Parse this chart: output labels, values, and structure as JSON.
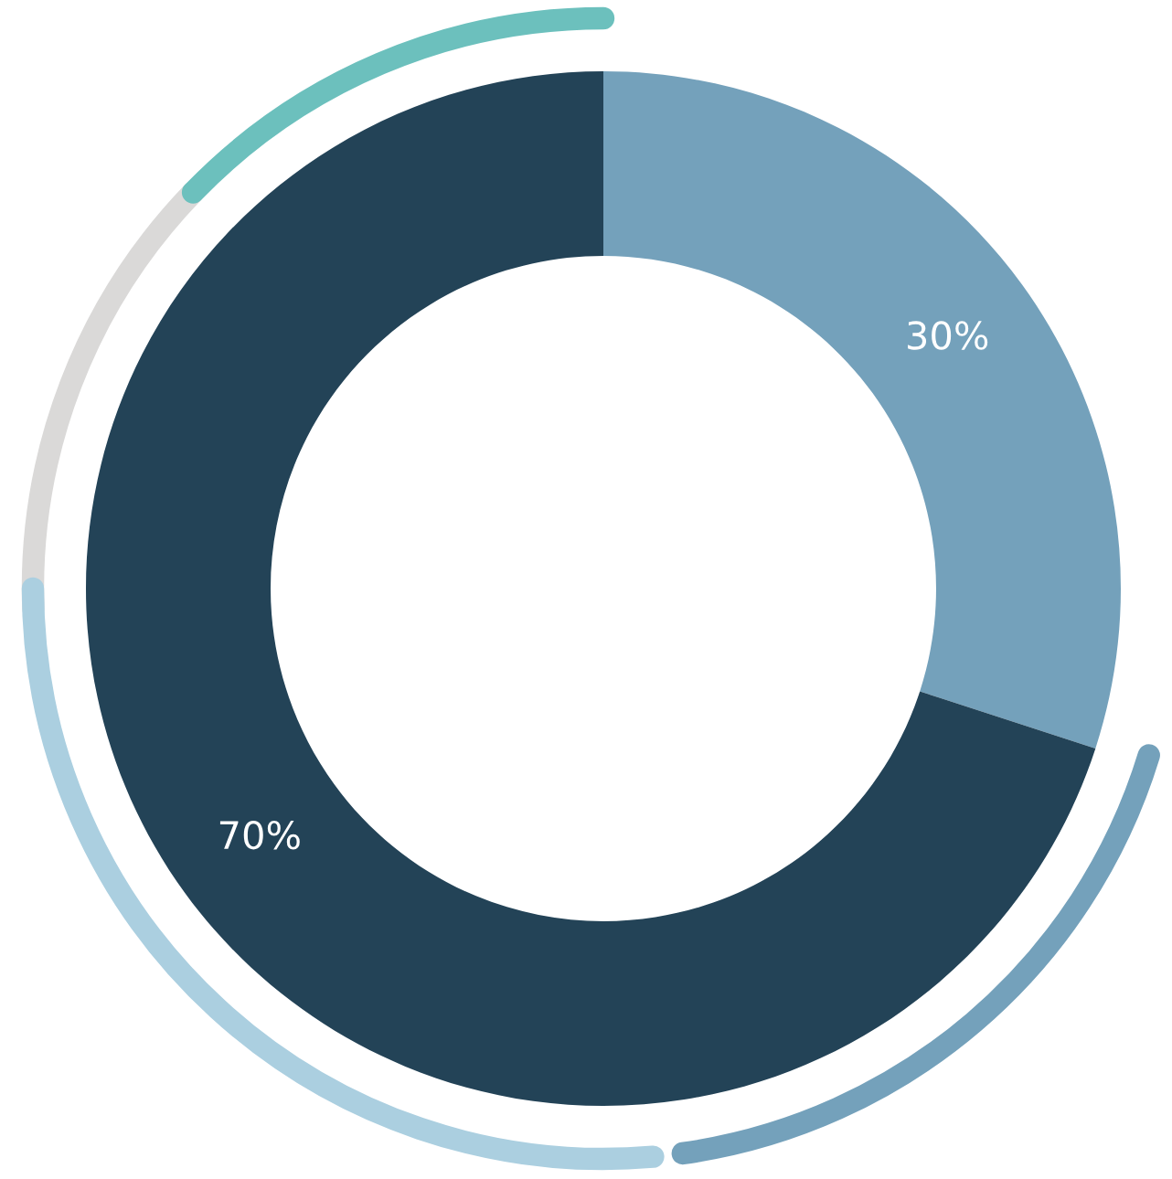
{
  "chart_data": {
    "type": "donut",
    "categories": [
      null,
      null
    ],
    "values": [
      30,
      70
    ],
    "colors": [
      "#74a1bb",
      "#234357"
    ],
    "value_labels": [
      "30%",
      "70%"
    ]
  }
}
